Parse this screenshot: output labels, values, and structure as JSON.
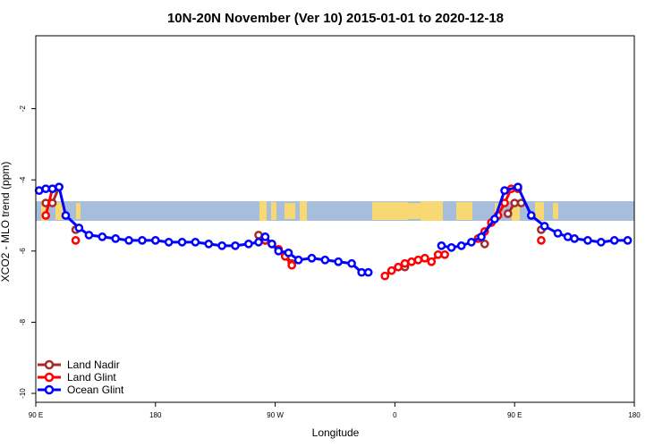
{
  "chart_data": {
    "type": "line",
    "title": "10N-20N November (Ver 10)   2015-01-01 to 2020-12-18",
    "xlabel": "Longitude",
    "ylabel": "XCO2 - MLO trend (ppm)",
    "xlim": [
      0,
      405
    ],
    "ylim": [
      -11,
      -0.8
    ],
    "x_ticks": [
      {
        "value": 0,
        "label": "90 E"
      },
      {
        "value": 90,
        "label": "180"
      },
      {
        "value": 180,
        "label": "90 W"
      },
      {
        "value": 270,
        "label": "0"
      },
      {
        "value": 360,
        "label": "90 E"
      },
      {
        "value": 450,
        "label": "180"
      }
    ],
    "y_ticks": [
      {
        "value": -2,
        "label": "-2"
      },
      {
        "value": -4,
        "label": "-4"
      },
      {
        "value": -6,
        "label": "-6"
      },
      {
        "value": -8,
        "label": "-8"
      },
      {
        "value": -10,
        "label": "-10"
      }
    ],
    "map_band": {
      "ymin": -5.15,
      "ymax": -4.6,
      "ocean_color": "#a6bddb",
      "land_color": "#f7d873"
    },
    "legend_position": "bottom-left",
    "series": [
      {
        "name": "Land Nadir",
        "color": "#a52a2a",
        "segments": [
          [
            [
              7.5,
              -4.65
            ],
            [
              12.5,
              -4.65
            ],
            [
              17.5,
              -4.2
            ]
          ],
          [
            [
              30,
              -5.4
            ]
          ],
          [
            [
              167.5,
              -5.55
            ],
            [
              172.5,
              -5.7
            ]
          ],
          [
            [
              187.5,
              -6.1
            ],
            [
              192.5,
              -6.35
            ]
          ],
          [
            [
              277.5,
              -6.45
            ]
          ],
          [
            [
              337.5,
              -5.8
            ]
          ],
          [
            [
              355,
              -4.95
            ],
            [
              360,
              -4.65
            ],
            [
              365,
              -4.65
            ]
          ],
          [
            [
              380,
              -5.4
            ]
          ]
        ]
      },
      {
        "name": "Land Glint",
        "color": "#ff0000",
        "segments": [
          [
            [
              7.5,
              -5.0
            ],
            [
              12.5,
              -4.25
            ],
            [
              17.5,
              -4.2
            ]
          ],
          [
            [
              30,
              -5.7
            ]
          ],
          [
            [
              172.5,
              -5.7
            ],
            [
              177.5,
              -5.8
            ],
            [
              182.5,
              -5.95
            ],
            [
              187.5,
              -6.15
            ],
            [
              192.5,
              -6.4
            ]
          ],
          [
            [
              262.5,
              -6.7
            ],
            [
              267.5,
              -6.55
            ],
            [
              272.5,
              -6.45
            ],
            [
              277.5,
              -6.35
            ],
            [
              282.5,
              -6.3
            ],
            [
              287.5,
              -6.25
            ],
            [
              292.5,
              -6.2
            ],
            [
              297.5,
              -6.3
            ],
            [
              302.5,
              -6.1
            ],
            [
              307.5,
              -6.1
            ]
          ],
          [
            [
              332.5,
              -5.65
            ],
            [
              337.5,
              -5.45
            ],
            [
              342.5,
              -5.2
            ],
            [
              347.5,
              -5.0
            ],
            [
              352.5,
              -4.65
            ],
            [
              357.5,
              -4.25
            ],
            [
              362.5,
              -4.25
            ]
          ],
          [
            [
              380,
              -5.7
            ]
          ]
        ]
      },
      {
        "name": "Ocean Glint",
        "color": "#0000ff",
        "segments": [
          [
            [
              2.5,
              -4.3
            ],
            [
              7.5,
              -4.25
            ],
            [
              12.5,
              -4.25
            ],
            [
              17.5,
              -4.2
            ],
            [
              22.5,
              -5.0
            ],
            [
              32.5,
              -5.35
            ],
            [
              40,
              -5.55
            ],
            [
              50,
              -5.6
            ],
            [
              60,
              -5.65
            ],
            [
              70,
              -5.7
            ],
            [
              80,
              -5.7
            ],
            [
              90,
              -5.7
            ],
            [
              100,
              -5.75
            ],
            [
              110,
              -5.75
            ],
            [
              120,
              -5.75
            ],
            [
              130,
              -5.8
            ],
            [
              140,
              -5.85
            ],
            [
              150,
              -5.85
            ],
            [
              160,
              -5.8
            ],
            [
              167.5,
              -5.75
            ],
            [
              172.5,
              -5.6
            ],
            [
              177.5,
              -5.8
            ],
            [
              182.5,
              -6.0
            ],
            [
              190,
              -6.05
            ],
            [
              197.5,
              -6.25
            ],
            [
              207.5,
              -6.2
            ],
            [
              217.5,
              -6.25
            ],
            [
              227.5,
              -6.3
            ],
            [
              237.5,
              -6.35
            ],
            [
              245,
              -6.6
            ],
            [
              250,
              -6.6
            ]
          ],
          [
            [
              305,
              -5.85
            ],
            [
              312.5,
              -5.9
            ],
            [
              320,
              -5.85
            ],
            [
              327.5,
              -5.75
            ],
            [
              335,
              -5.6
            ],
            [
              345,
              -5.1
            ],
            [
              352.5,
              -4.3
            ],
            [
              362.5,
              -4.2
            ],
            [
              372.5,
              -5.0
            ],
            [
              382.5,
              -5.3
            ],
            [
              392.5,
              -5.5
            ],
            [
              400,
              -5.6
            ],
            [
              405,
              -5.65
            ],
            [
              415,
              -5.7
            ],
            [
              425,
              -5.75
            ],
            [
              435,
              -5.7
            ],
            [
              445,
              -5.7
            ]
          ]
        ]
      }
    ]
  }
}
